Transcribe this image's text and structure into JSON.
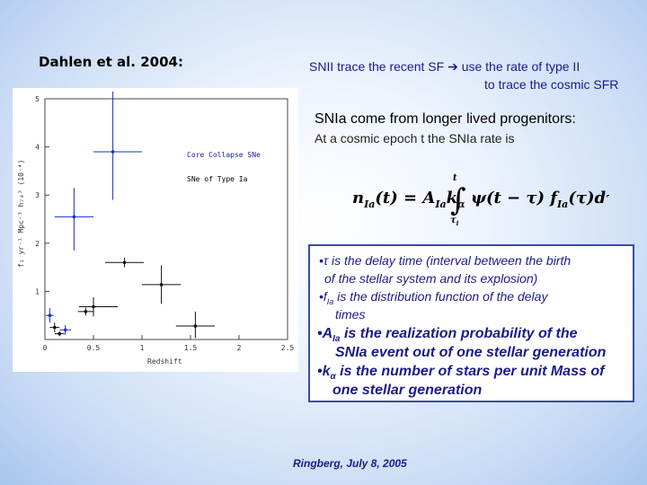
{
  "slide": {
    "author": "Dahlen et al. 2004:",
    "snii_line1": "SNII trace the recent SF",
    "snii_arrow": "➔",
    "snii_line1b": "use the rate of type II",
    "snii_line2": "to trace the cosmic SFR",
    "snia_heading": "SNIa come from longer lived progenitors:",
    "snia_sub": "At a cosmic epoch t the SNIa rate is",
    "box": {
      "l1": "•τ is the delay time (interval between the birth",
      "l2": "of the stellar system and its explosion)",
      "l3a": "•f",
      "l3sub": "Ia",
      "l3b": " is the distribution function of the delay",
      "l4": "times",
      "l5a": "•A",
      "l5sub": "Ia",
      "l5b": " is the realization probability of the",
      "l6": "SNIa event out of one stellar generation",
      "l7a": "•k",
      "l7sub": "α",
      "l7b": " is the number of stars per unit Mass of",
      "l8": "one stellar generation"
    },
    "footer": "Ringberg, July 8, 2005"
  },
  "formula": {
    "lhs_n": "n",
    "lhs_sub": "Ia",
    "lhs_arg": "(t) = A",
    "A_sub": "Ia",
    "k": "k",
    "k_sub": "α",
    "int_upper": "t",
    "int_lower": "τ",
    "int_lower_sub": "i",
    "integrand1": "ψ(t − τ) f",
    "f_sub": "Ia",
    "integrand2": "(τ)dτ"
  },
  "chart_data": {
    "type": "scatter",
    "xlabel": "Redshift",
    "ylabel": "f₁ yr⁻¹ Mpc⁻³ h₇₀³ (10⁻⁴)",
    "xlim": [
      0,
      2.5
    ],
    "ylim": [
      0,
      5
    ],
    "xticks": [
      "0",
      "0.5",
      "1",
      "1.5",
      "2",
      "2.5"
    ],
    "yticks": [
      "1",
      "2",
      "3",
      "4",
      "5"
    ],
    "legend": [
      "Core Collapse SNe",
      "SNe of Type Ia"
    ],
    "legend_colors": [
      "#1a1aa8",
      "#000000"
    ],
    "series": [
      {
        "name": "Core Collapse SNe",
        "color": "#1a2fd0",
        "points": [
          {
            "x": 0.3,
            "y": 2.55,
            "xerr": [
              0.2,
              0.2
            ],
            "yerr": [
              0.7,
              0.6
            ]
          },
          {
            "x": 0.7,
            "y": 3.9,
            "xerr": [
              0.2,
              0.3
            ],
            "yerr": [
              1.0,
              1.25
            ]
          },
          {
            "x": 0.05,
            "y": 0.5,
            "xerr": [
              0.04,
              0.04
            ],
            "yerr": [
              0.15,
              0.15
            ]
          },
          {
            "x": 0.21,
            "y": 0.2,
            "xerr": [
              0.06,
              0.06
            ],
            "yerr": [
              0.1,
              0.1
            ]
          }
        ]
      },
      {
        "name": "SNe of Type Ia",
        "color": "#111111",
        "points": [
          {
            "x": 0.5,
            "y": 0.68,
            "xerr": [
              0.15,
              0.25
            ],
            "yerr": [
              0.2,
              0.2
            ]
          },
          {
            "x": 0.82,
            "y": 1.6,
            "xerr": [
              0.2,
              0.2
            ],
            "yerr": [
              0.1,
              0.1
            ]
          },
          {
            "x": 1.2,
            "y": 1.14,
            "xerr": [
              0.2,
              0.2
            ],
            "yerr": [
              0.4,
              0.4
            ]
          },
          {
            "x": 1.55,
            "y": 0.28,
            "xerr": [
              0.2,
              0.2
            ],
            "yerr": [
              0.25,
              0.3
            ]
          },
          {
            "x": 0.1,
            "y": 0.25,
            "xerr": [
              0.05,
              0.05
            ],
            "yerr": [
              0.1,
              0.1
            ]
          },
          {
            "x": 0.15,
            "y": 0.12,
            "xerr": [
              0.05,
              0.05
            ],
            "yerr": [
              0.05,
              0.05
            ]
          },
          {
            "x": 0.42,
            "y": 0.58,
            "xerr": [
              0.08,
              0.08
            ],
            "yerr": [
              0.08,
              0.08
            ]
          }
        ]
      }
    ]
  }
}
